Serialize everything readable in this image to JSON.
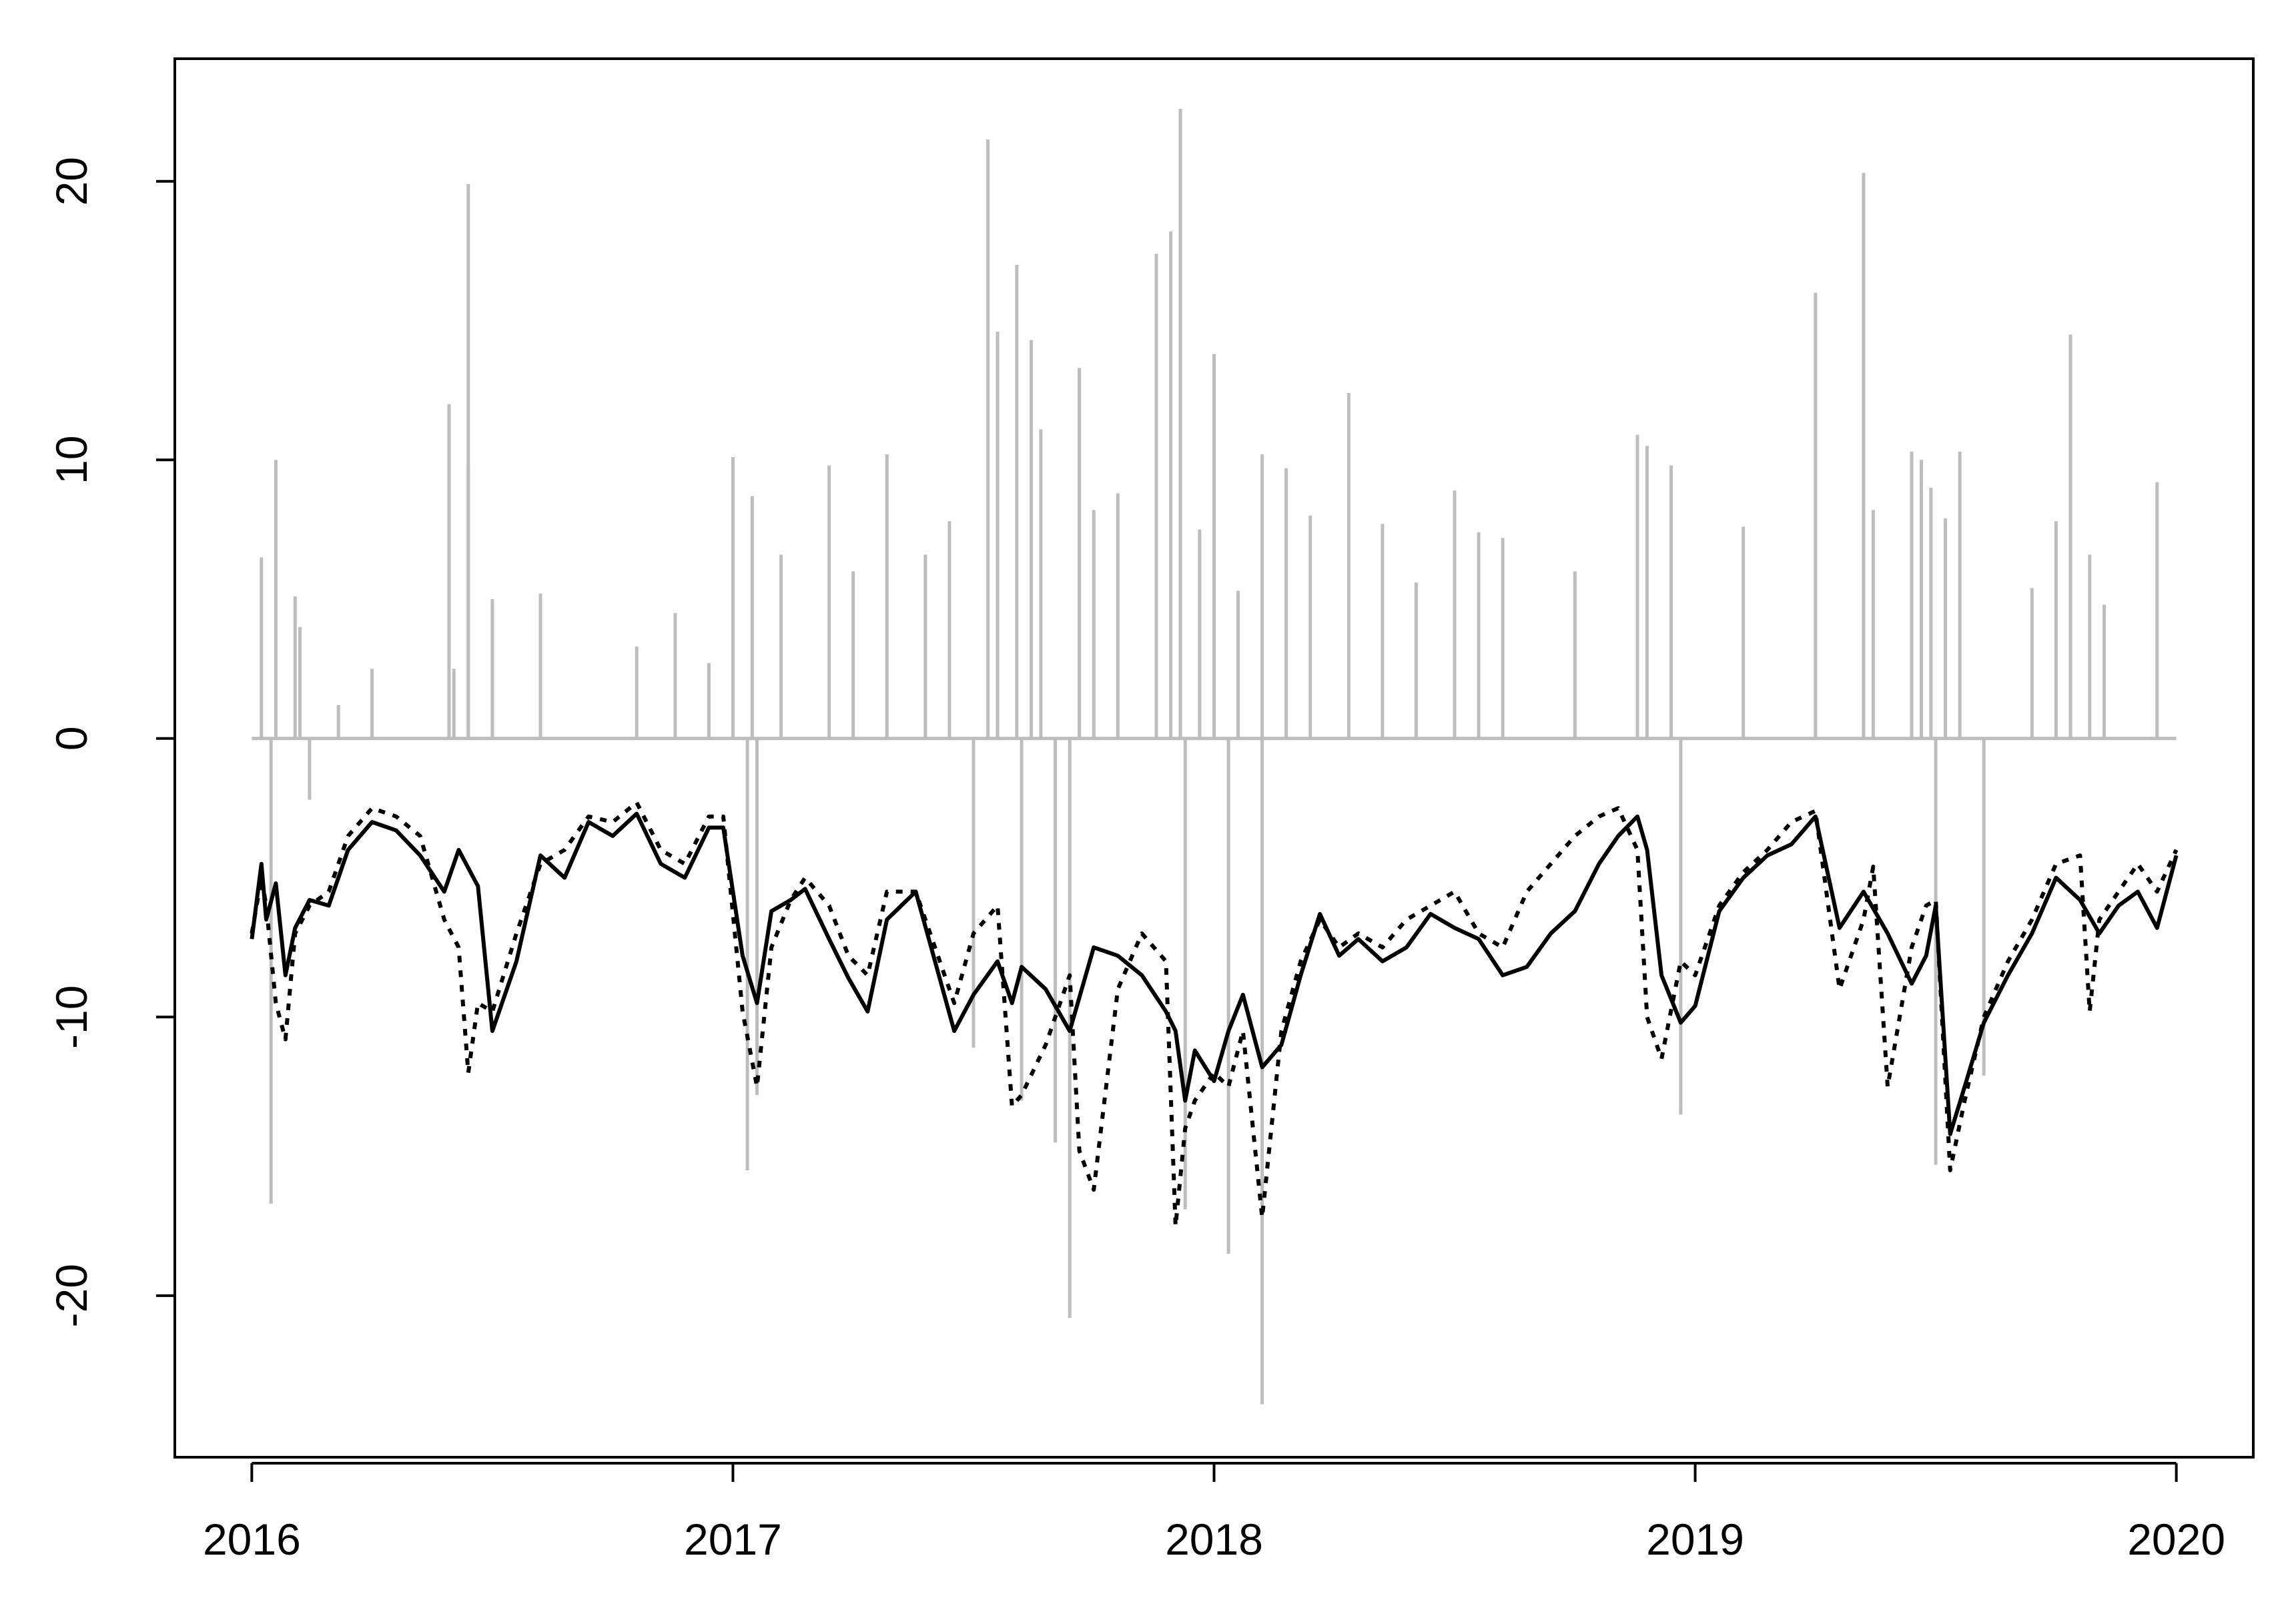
{
  "chart_data": {
    "type": "line",
    "title": "",
    "xlabel": "",
    "ylabel": "",
    "xlim": [
      2015.84,
      2020.16
    ],
    "ylim": [
      -25.8,
      24.4
    ],
    "grid": false,
    "x_ticks": [
      {
        "value": 2016,
        "label": "2016"
      },
      {
        "value": 2017,
        "label": "2017"
      },
      {
        "value": 2018,
        "label": "2018"
      },
      {
        "value": 2019,
        "label": "2019"
      },
      {
        "value": 2020,
        "label": "2020"
      }
    ],
    "y_ticks": [
      {
        "value": 20,
        "label": "20"
      },
      {
        "value": 10,
        "label": "10"
      },
      {
        "value": 0,
        "label": "0"
      },
      {
        "value": -10,
        "label": "-10"
      },
      {
        "value": -20,
        "label": "-20"
      }
    ],
    "colors": {
      "series_solid": "#000000",
      "series_dotted": "#000000",
      "spikes": "#bdbdbd"
    },
    "spike_series": {
      "style": "histogram bars from 0",
      "x": [
        2016.02,
        2016.04,
        2016.05,
        2016.09,
        2016.1,
        2016.12,
        2016.18,
        2016.25,
        2016.41,
        2016.42,
        2016.45,
        2016.45,
        2016.5,
        2016.6,
        2016.8,
        2016.88,
        2016.95,
        2017.0,
        2017.03,
        2017.04,
        2017.05,
        2017.1,
        2017.2,
        2017.25,
        2017.32,
        2017.4,
        2017.45,
        2017.5,
        2017.53,
        2017.55,
        2017.59,
        2017.6,
        2017.62,
        2017.64,
        2017.67,
        2017.7,
        2017.72,
        2017.75,
        2017.8,
        2017.88,
        2017.91,
        2017.93,
        2017.94,
        2017.97,
        2018.0,
        2018.03,
        2018.05,
        2018.1,
        2018.1,
        2018.15,
        2018.2,
        2018.28,
        2018.35,
        2018.42,
        2018.5,
        2018.55,
        2018.6,
        2018.75,
        2018.88,
        2018.9,
        2018.95,
        2018.97,
        2019.1,
        2019.25,
        2019.35,
        2019.37,
        2019.45,
        2019.47,
        2019.49,
        2019.5,
        2019.52,
        2019.55,
        2019.6,
        2019.7,
        2019.75,
        2019.78,
        2019.82,
        2019.85,
        2019.96
      ],
      "values": [
        6.5,
        -16.7,
        10.0,
        5.1,
        4.0,
        -2.2,
        1.2,
        2.5,
        12.0,
        2.5,
        19.9,
        9.8,
        5.0,
        5.2,
        3.3,
        4.5,
        2.7,
        10.1,
        -15.5,
        8.7,
        -12.8,
        6.6,
        9.8,
        6.0,
        10.2,
        6.6,
        7.8,
        -11.1,
        21.5,
        14.6,
        17.0,
        -13.0,
        14.3,
        11.1,
        -14.5,
        -20.8,
        13.3,
        8.2,
        8.8,
        17.4,
        18.2,
        22.6,
        -16.9,
        7.5,
        13.8,
        -18.5,
        5.3,
        10.2,
        -23.9,
        9.7,
        8.0,
        12.4,
        7.7,
        5.6,
        8.9,
        7.4,
        7.2,
        6.0,
        10.9,
        10.5,
        9.8,
        -13.5,
        7.6,
        16.0,
        20.3,
        8.2,
        10.3,
        10.0,
        9.0,
        -15.3,
        7.9,
        10.3,
        -12.1,
        5.4,
        7.8,
        14.5,
        6.6,
        4.8,
        9.2
      ]
    },
    "series": [
      {
        "style": "solid",
        "x": [
          2016.0,
          2016.02,
          2016.03,
          2016.05,
          2016.07,
          2016.09,
          2016.12,
          2016.16,
          2016.2,
          2016.25,
          2016.3,
          2016.35,
          2016.4,
          2016.43,
          2016.47,
          2016.5,
          2016.55,
          2016.6,
          2016.65,
          2016.7,
          2016.75,
          2016.8,
          2016.85,
          2016.9,
          2016.95,
          2016.98,
          2017.02,
          2017.05,
          2017.08,
          2017.12,
          2017.15,
          2017.2,
          2017.24,
          2017.28,
          2017.32,
          2017.38,
          2017.42,
          2017.46,
          2017.5,
          2017.55,
          2017.58,
          2017.6,
          2017.65,
          2017.7,
          2017.75,
          2017.8,
          2017.85,
          2017.9,
          2017.92,
          2017.94,
          2017.96,
          2018.0,
          2018.03,
          2018.06,
          2018.1,
          2018.14,
          2018.18,
          2018.22,
          2018.26,
          2018.3,
          2018.35,
          2018.4,
          2018.45,
          2018.5,
          2018.55,
          2018.6,
          2018.65,
          2018.7,
          2018.75,
          2018.8,
          2018.84,
          2018.88,
          2018.9,
          2018.93,
          2018.97,
          2019.0,
          2019.05,
          2019.1,
          2019.15,
          2019.2,
          2019.25,
          2019.3,
          2019.35,
          2019.4,
          2019.45,
          2019.48,
          2019.5,
          2019.53,
          2019.56,
          2019.6,
          2019.65,
          2019.7,
          2019.75,
          2019.8,
          2019.84,
          2019.88,
          2019.92,
          2019.96,
          2020.0
        ],
        "values": [
          -7.2,
          -4.5,
          -6.5,
          -5.2,
          -8.5,
          -6.8,
          -5.8,
          -6.0,
          -4.0,
          -3.0,
          -3.3,
          -4.2,
          -5.5,
          -4.0,
          -5.3,
          -10.5,
          -8.0,
          -4.2,
          -5.0,
          -3.0,
          -3.5,
          -2.7,
          -4.5,
          -5.0,
          -3.2,
          -3.2,
          -7.8,
          -9.5,
          -6.2,
          -5.8,
          -5.4,
          -7.2,
          -8.6,
          -9.8,
          -6.5,
          -5.5,
          -8.0,
          -10.5,
          -9.2,
          -8.0,
          -9.5,
          -8.2,
          -9.0,
          -10.5,
          -7.5,
          -7.8,
          -8.5,
          -9.8,
          -10.5,
          -13.0,
          -11.2,
          -12.3,
          -10.5,
          -9.2,
          -11.8,
          -11.0,
          -8.5,
          -6.3,
          -7.8,
          -7.2,
          -8.0,
          -7.5,
          -6.3,
          -6.8,
          -7.2,
          -8.5,
          -8.2,
          -7.0,
          -6.2,
          -4.5,
          -3.5,
          -2.8,
          -4.0,
          -8.5,
          -10.2,
          -9.6,
          -6.2,
          -5.0,
          -4.2,
          -3.8,
          -2.8,
          -6.8,
          -5.5,
          -7.0,
          -8.8,
          -7.8,
          -6.0,
          -14.2,
          -12.5,
          -10.2,
          -8.5,
          -7.0,
          -5.0,
          -5.8,
          -7.0,
          -6.0,
          -5.5,
          -6.8,
          -4.2
        ]
      },
      {
        "style": "dotted",
        "x": [
          2016.0,
          2016.02,
          2016.03,
          2016.05,
          2016.07,
          2016.09,
          2016.12,
          2016.16,
          2016.2,
          2016.25,
          2016.3,
          2016.35,
          2016.4,
          2016.43,
          2016.45,
          2016.47,
          2016.5,
          2016.55,
          2016.6,
          2016.65,
          2016.7,
          2016.75,
          2016.8,
          2016.85,
          2016.9,
          2016.95,
          2016.98,
          2017.02,
          2017.05,
          2017.08,
          2017.12,
          2017.15,
          2017.2,
          2017.24,
          2017.28,
          2017.32,
          2017.38,
          2017.42,
          2017.46,
          2017.5,
          2017.55,
          2017.58,
          2017.6,
          2017.65,
          2017.7,
          2017.72,
          2017.75,
          2017.8,
          2017.85,
          2017.9,
          2017.92,
          2017.94,
          2017.96,
          2018.0,
          2018.03,
          2018.06,
          2018.1,
          2018.14,
          2018.18,
          2018.22,
          2018.26,
          2018.3,
          2018.35,
          2018.4,
          2018.45,
          2018.5,
          2018.55,
          2018.6,
          2018.65,
          2018.7,
          2018.75,
          2018.8,
          2018.84,
          2018.88,
          2018.9,
          2018.93,
          2018.97,
          2019.0,
          2019.05,
          2019.1,
          2019.15,
          2019.2,
          2019.25,
          2019.3,
          2019.35,
          2019.37,
          2019.4,
          2019.45,
          2019.48,
          2019.5,
          2019.53,
          2019.56,
          2019.6,
          2019.65,
          2019.7,
          2019.75,
          2019.8,
          2019.82,
          2019.84,
          2019.88,
          2019.92,
          2019.96,
          2020.0
        ],
        "values": [
          -7.0,
          -5.0,
          -6.0,
          -9.5,
          -10.8,
          -7.0,
          -6.0,
          -5.5,
          -3.5,
          -2.5,
          -2.8,
          -3.5,
          -6.5,
          -7.5,
          -12.0,
          -9.5,
          -9.8,
          -7.0,
          -4.5,
          -4.0,
          -2.8,
          -3.0,
          -2.3,
          -4.0,
          -4.5,
          -2.8,
          -2.8,
          -9.8,
          -12.5,
          -7.5,
          -5.8,
          -5.0,
          -6.0,
          -7.8,
          -8.5,
          -5.5,
          -5.5,
          -7.5,
          -9.5,
          -7.0,
          -6.0,
          -13.2,
          -12.8,
          -11.0,
          -8.5,
          -14.8,
          -16.2,
          -9.0,
          -7.0,
          -8.0,
          -17.5,
          -14.0,
          -13.0,
          -12.0,
          -12.5,
          -10.5,
          -17.2,
          -10.5,
          -8.0,
          -6.5,
          -7.5,
          -7.0,
          -7.5,
          -6.5,
          -6.0,
          -5.5,
          -7.0,
          -7.5,
          -5.5,
          -4.5,
          -3.5,
          -2.8,
          -2.5,
          -4.0,
          -10.0,
          -11.5,
          -8.0,
          -8.5,
          -6.0,
          -4.8,
          -4.0,
          -3.0,
          -2.6,
          -9.0,
          -6.5,
          -4.6,
          -12.5,
          -7.5,
          -6.0,
          -5.8,
          -15.5,
          -13.0,
          -10.0,
          -8.0,
          -6.5,
          -4.5,
          -4.2,
          -9.8,
          -6.5,
          -5.5,
          -4.5,
          -5.5,
          -4.0
        ]
      }
    ]
  }
}
